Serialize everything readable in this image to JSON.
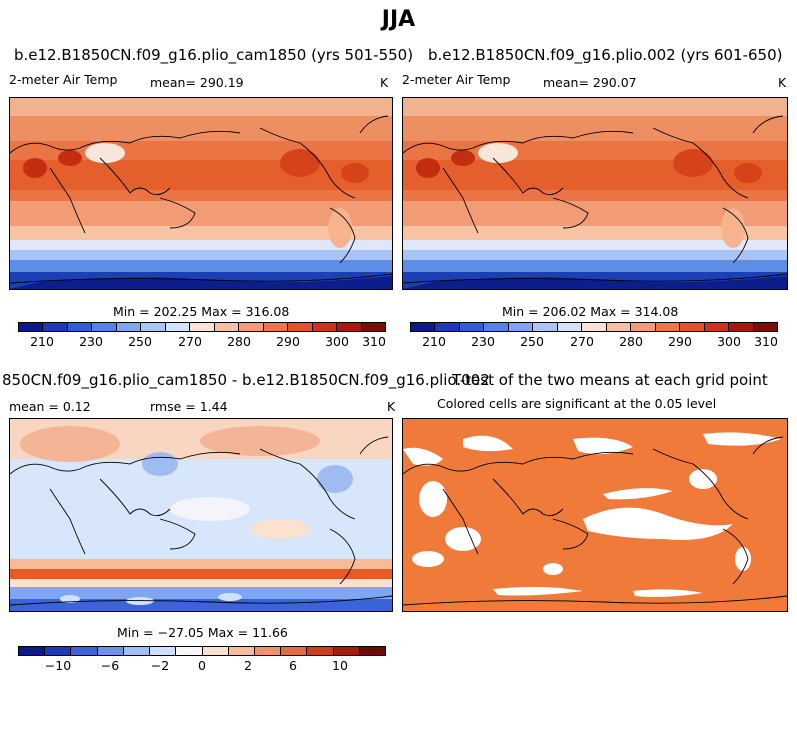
{
  "figure": {
    "title": "JJA"
  },
  "panels": {
    "p1": {
      "title": "b.e12.B1850CN.f09_g16.plio_cam1850 (yrs 501-550)",
      "variable": "2-meter Air Temp",
      "mean": "mean= 290.19",
      "units": "K",
      "minmax": "Min = 202.25 Max = 316.08",
      "colorbar_ticks": [
        "210",
        "230",
        "250",
        "270",
        "280",
        "290",
        "300",
        "310"
      ]
    },
    "p2": {
      "title": "b.e12.B1850CN.f09_g16.plio.002 (yrs 601-650)",
      "variable": "2-meter Air Temp",
      "mean": "mean= 290.07",
      "units": "K",
      "minmax": "Min = 206.02 Max = 314.08",
      "colorbar_ticks": [
        "210",
        "230",
        "250",
        "270",
        "280",
        "290",
        "300",
        "310"
      ]
    },
    "p3": {
      "title": "850CN.f09_g16.plio_cam1850 - b.e12.B1850CN.f09_g16.plio.002",
      "mean": "mean =    0.12",
      "rmse": "rmse =    1.44",
      "units": "K",
      "minmax": "Min = −27.05 Max =  11.66",
      "colorbar_ticks": [
        "−10",
        "−6",
        "−2",
        "0",
        "2",
        "6",
        "10"
      ]
    },
    "p4": {
      "title": "T-test of the two means at each grid point",
      "subtitle": "Colored cells are significant at the 0.05 level"
    }
  },
  "colors": {
    "temperature_scale": [
      "#0a1a8a",
      "#1c3ab8",
      "#2f5fd8",
      "#5283e8",
      "#7ea6f2",
      "#aac6f8",
      "#d4e2fb",
      "#fbe3d3",
      "#f8c0a0",
      "#f59a72",
      "#ef7548",
      "#e45228",
      "#cf3315",
      "#a8190b",
      "#7a0d05"
    ],
    "anomaly_scale": [
      "#0a1a8a",
      "#1c3ab8",
      "#3a64d8",
      "#6b93ea",
      "#a0bff5",
      "#cfe0fa",
      "#f5f7fb",
      "#fbe1d0",
      "#f7bb98",
      "#f1916a",
      "#e56a3e",
      "#cc3f19",
      "#a51d0a",
      "#6e0a03"
    ],
    "significance": "#f07a3a"
  }
}
